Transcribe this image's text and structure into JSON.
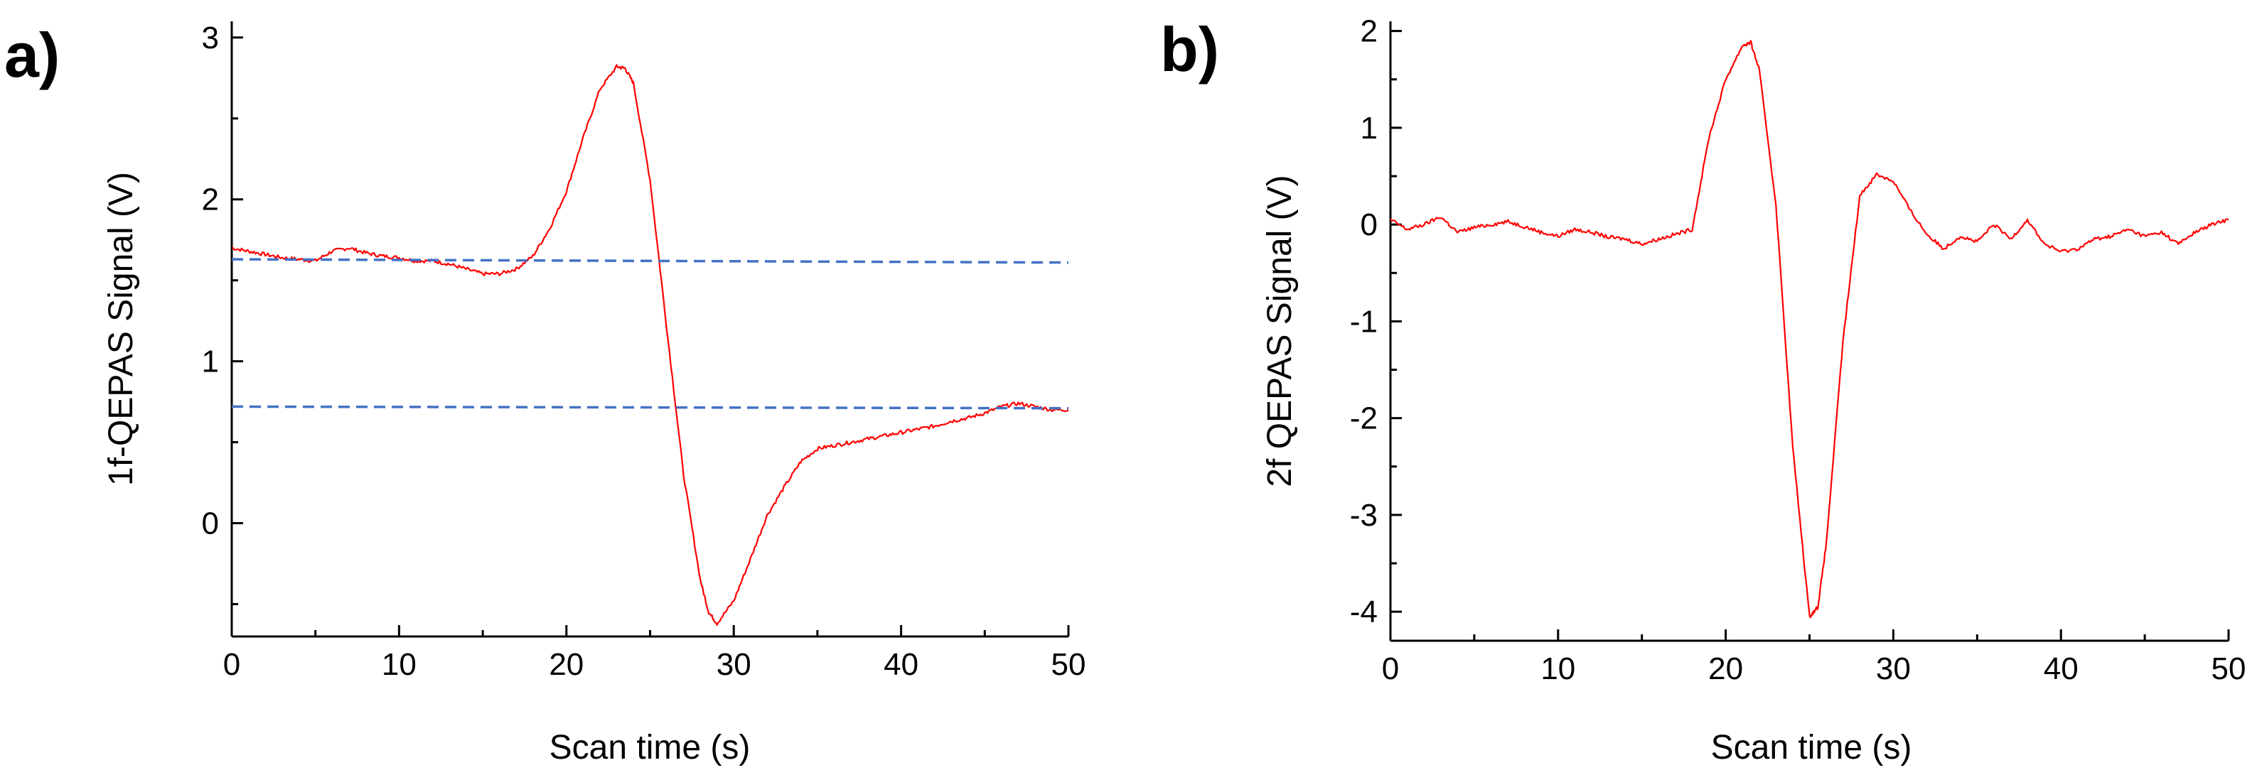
{
  "colors": {
    "signal": "#ff0000",
    "reference": "#4472c4",
    "axis": "#000000"
  },
  "chart_data": [
    {
      "panel_label": "a)",
      "type": "line",
      "title": "",
      "xlabel": "Scan time (s)",
      "ylabel": "1f-QEPAS Signal (V)",
      "xlim": [
        0,
        50
      ],
      "ylim": [
        -0.7,
        3.1
      ],
      "xticks": [
        0,
        10,
        20,
        30,
        40,
        50
      ],
      "yticks": [
        0,
        1,
        2,
        3
      ],
      "xminor": [
        5,
        15,
        25,
        35,
        45
      ],
      "yminor": [
        -0.5,
        0.5,
        1.5,
        2.5
      ],
      "grid": false,
      "legend": "none",
      "series": [
        {
          "name": "1f-QEPAS signal",
          "color": "#ff0000",
          "style": "solid",
          "x": [
            0,
            1,
            2,
            3,
            4,
            5,
            6,
            7,
            8,
            9,
            10,
            11,
            12,
            13,
            14,
            15,
            16,
            17,
            18,
            19,
            20,
            21,
            22,
            23,
            23.5,
            24,
            25,
            26,
            27,
            28,
            28.5,
            29,
            30,
            31,
            32,
            33,
            34,
            35,
            36,
            37,
            38,
            39,
            40,
            41,
            42,
            43,
            44,
            45,
            46,
            47,
            48,
            49,
            50
          ],
          "y": [
            1.7,
            1.68,
            1.66,
            1.64,
            1.63,
            1.62,
            1.68,
            1.7,
            1.67,
            1.65,
            1.64,
            1.62,
            1.62,
            1.6,
            1.57,
            1.54,
            1.54,
            1.57,
            1.65,
            1.82,
            2.05,
            2.38,
            2.68,
            2.82,
            2.81,
            2.72,
            2.12,
            1.2,
            0.3,
            -0.35,
            -0.55,
            -0.62,
            -0.48,
            -0.22,
            0.05,
            0.22,
            0.38,
            0.46,
            0.48,
            0.5,
            0.52,
            0.54,
            0.56,
            0.58,
            0.6,
            0.63,
            0.65,
            0.68,
            0.72,
            0.74,
            0.72,
            0.7,
            0.7
          ]
        },
        {
          "name": "upper reference",
          "color": "#4472c4",
          "style": "dashed",
          "x": [
            0,
            50
          ],
          "y": [
            1.63,
            1.61
          ]
        },
        {
          "name": "lower reference",
          "color": "#4472c4",
          "style": "dashed",
          "x": [
            0,
            50
          ],
          "y": [
            0.72,
            0.71
          ]
        }
      ]
    },
    {
      "panel_label": "b)",
      "type": "line",
      "title": "",
      "xlabel": "Scan time (s)",
      "ylabel": "2f QEPAS Signal (V)",
      "xlim": [
        0,
        50
      ],
      "ylim": [
        -4.3,
        2.1
      ],
      "xticks": [
        0,
        10,
        20,
        30,
        40,
        50
      ],
      "yticks": [
        2,
        1,
        0,
        -1,
        -2,
        -3,
        -4
      ],
      "xminor": [
        5,
        15,
        25,
        35,
        45
      ],
      "yminor": [
        1.5,
        0.5,
        -0.5,
        -1.5,
        -2.5,
        -3.5
      ],
      "grid": false,
      "legend": "none",
      "series": [
        {
          "name": "2f-QEPAS signal",
          "color": "#ff0000",
          "style": "solid",
          "x": [
            0,
            1,
            2,
            3,
            4,
            5,
            6,
            7,
            8,
            9,
            10,
            11,
            12,
            13,
            14,
            15,
            16,
            17,
            18,
            19,
            20,
            21,
            21.5,
            22,
            23,
            24,
            25,
            25.5,
            26,
            27,
            28,
            29,
            30,
            31,
            32,
            33,
            34,
            35,
            36,
            37,
            38,
            39,
            40,
            41,
            42,
            43,
            44,
            45,
            46,
            47,
            48,
            49,
            50
          ],
          "y": [
            0.05,
            -0.05,
            0.0,
            0.08,
            -0.08,
            -0.03,
            0.0,
            0.03,
            -0.02,
            -0.08,
            -0.12,
            -0.05,
            -0.08,
            -0.13,
            -0.15,
            -0.2,
            -0.15,
            -0.1,
            -0.05,
            0.9,
            1.5,
            1.85,
            1.88,
            1.6,
            0.2,
            -2.3,
            -4.05,
            -3.95,
            -3.3,
            -1.2,
            0.3,
            0.52,
            0.45,
            0.15,
            -0.1,
            -0.25,
            -0.12,
            -0.18,
            0.0,
            -0.15,
            0.05,
            -0.2,
            -0.28,
            -0.25,
            -0.15,
            -0.12,
            -0.05,
            -0.12,
            -0.08,
            -0.2,
            -0.08,
            0.0,
            0.05
          ]
        }
      ]
    }
  ]
}
